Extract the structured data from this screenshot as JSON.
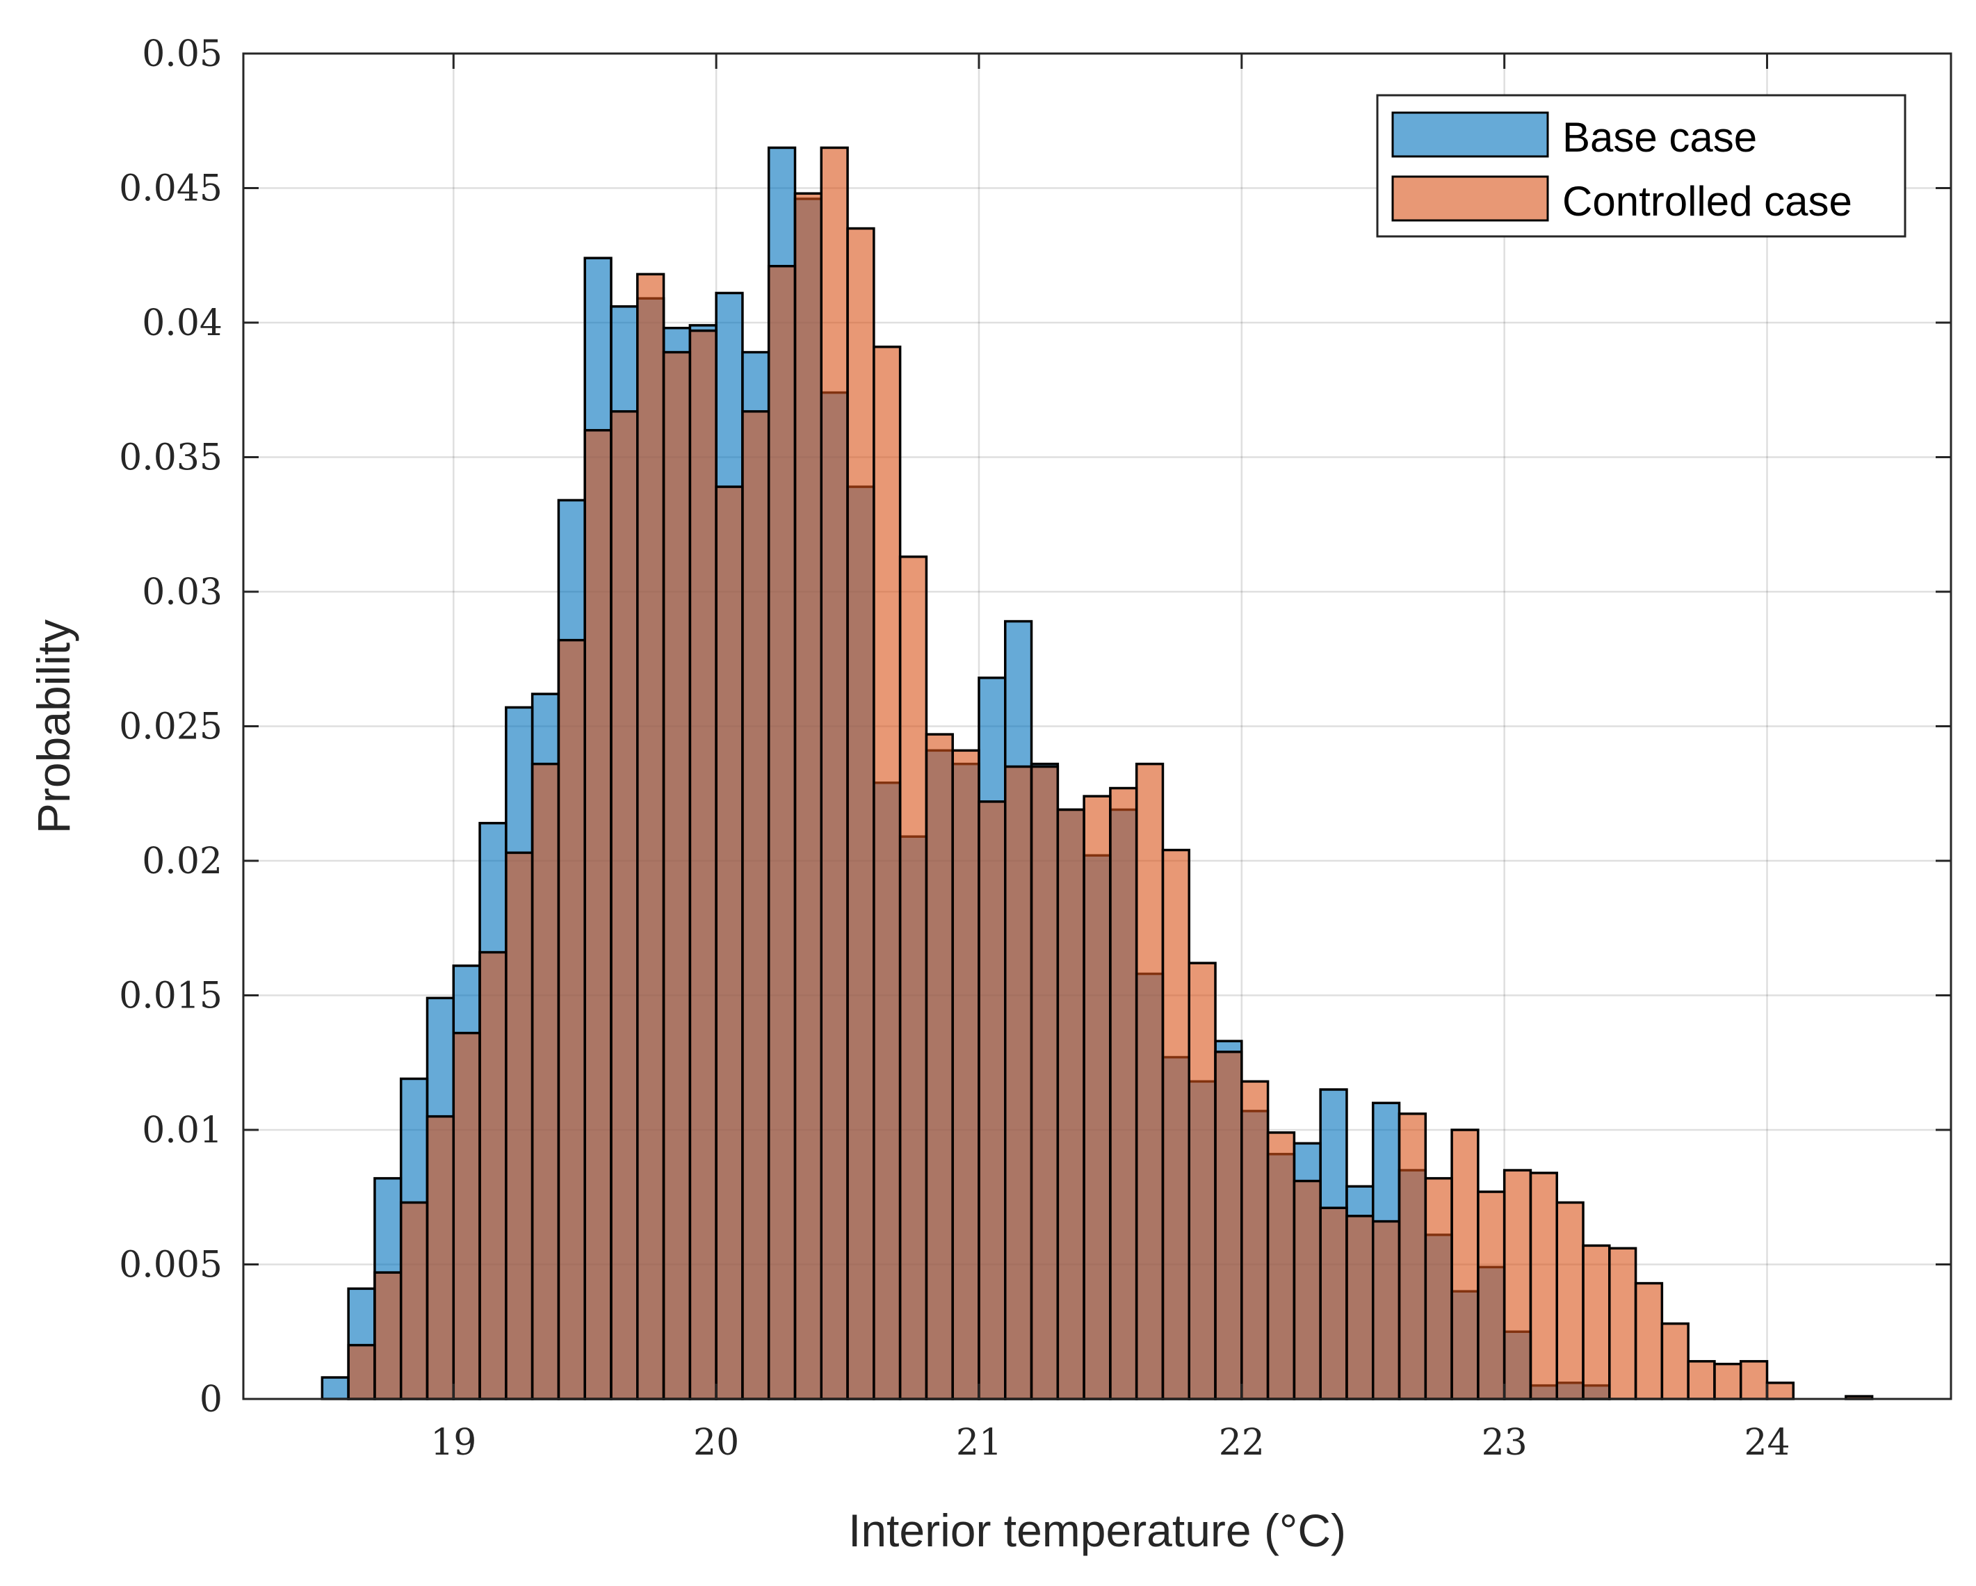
{
  "chart_data": {
    "type": "bar",
    "title": "",
    "xlabel": "Interior temperature (°C)",
    "ylabel": "Probability",
    "xlim": [
      18.2,
      24.7
    ],
    "ylim": [
      0,
      0.05
    ],
    "grid": true,
    "legend_position": "top-right",
    "x_ticks": [
      19,
      20,
      21,
      22,
      23,
      24
    ],
    "x_tick_labels": [
      "19",
      "20",
      "21",
      "22",
      "23",
      "24"
    ],
    "y_ticks": [
      0,
      0.005,
      0.01,
      0.015,
      0.02,
      0.025,
      0.03,
      0.035,
      0.04,
      0.045,
      0.05
    ],
    "y_tick_labels": [
      "0",
      "0.005",
      "0.01",
      "0.015",
      "0.02",
      "0.025",
      "0.03",
      "0.035",
      "0.04",
      "0.045",
      "0.05"
    ],
    "bin_width": 0.1,
    "bin_start": 18.5,
    "series": [
      {
        "name": "Base case",
        "color": "#0072BD",
        "values": [
          0.0008,
          0.0041,
          0.0082,
          0.0119,
          0.0149,
          0.0161,
          0.0214,
          0.0257,
          0.0262,
          0.0334,
          0.0424,
          0.0406,
          0.0409,
          0.0398,
          0.0399,
          0.0411,
          0.0389,
          0.0465,
          0.0446,
          0.0374,
          0.0339,
          0.0229,
          0.0209,
          0.0241,
          0.0236,
          0.0268,
          0.0289,
          0.0236,
          0.0219,
          0.0202,
          0.0219,
          0.0158,
          0.0127,
          0.0118,
          0.0133,
          0.0107,
          0.0091,
          0.0095,
          0.0115,
          0.0079,
          0.011,
          0.0085,
          0.0061,
          0.004,
          0.0049,
          0.0025,
          0.0005,
          0.0006,
          0.0005,
          0.0,
          0.0,
          0.0,
          0.0,
          0.0,
          0.0,
          0.0,
          0.0,
          0.0,
          0.0
        ],
        "values_note": "bins 18.5–24.4"
      },
      {
        "name": "Controlled case",
        "color": "#D95319",
        "values": [
          0.0,
          0.002,
          0.0047,
          0.0073,
          0.0105,
          0.0136,
          0.0166,
          0.0203,
          0.0236,
          0.0282,
          0.036,
          0.0367,
          0.0418,
          0.0389,
          0.0397,
          0.0339,
          0.0367,
          0.0421,
          0.0448,
          0.0465,
          0.0435,
          0.0391,
          0.0313,
          0.0247,
          0.0241,
          0.0222,
          0.0235,
          0.0235,
          0.0219,
          0.0224,
          0.0227,
          0.0236,
          0.0204,
          0.0162,
          0.0129,
          0.0118,
          0.0099,
          0.0081,
          0.0071,
          0.0068,
          0.0066,
          0.0106,
          0.0082,
          0.01,
          0.0077,
          0.0085,
          0.0084,
          0.0073,
          0.0057,
          0.0056,
          0.0043,
          0.0028,
          0.0014,
          0.0013,
          0.0014,
          0.0006,
          0.0,
          0.0,
          0.0001
        ],
        "values_note": "bins 18.5–24.4"
      }
    ]
  },
  "legend": {
    "items": [
      {
        "label": "Base case",
        "color": "#0072BD"
      },
      {
        "label": "Controlled case",
        "color": "#D95319"
      }
    ]
  }
}
